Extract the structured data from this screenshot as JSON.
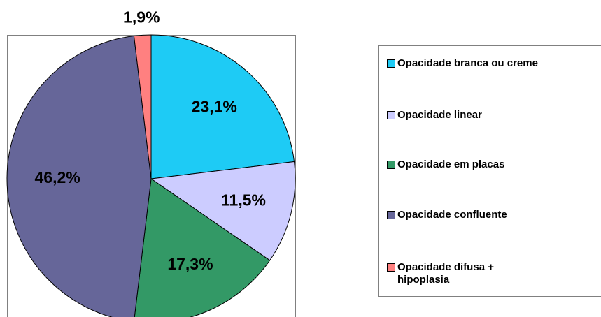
{
  "chart_data": {
    "type": "pie",
    "categories": [
      "Opacidade branca ou creme",
      "Opacidade linear",
      "Opacidade em placas",
      "Opacidade confluente",
      "Opacidade difusa + hipoplasia"
    ],
    "values": [
      23.1,
      11.5,
      17.3,
      46.2,
      1.9
    ],
    "value_labels": [
      "23,1%",
      "11,5%",
      "17,3%",
      "46,2%",
      "1,9%"
    ],
    "colors": [
      "#1ecbf5",
      "#ccccff",
      "#339966",
      "#666699",
      "#ff8080"
    ],
    "legend": "right"
  }
}
